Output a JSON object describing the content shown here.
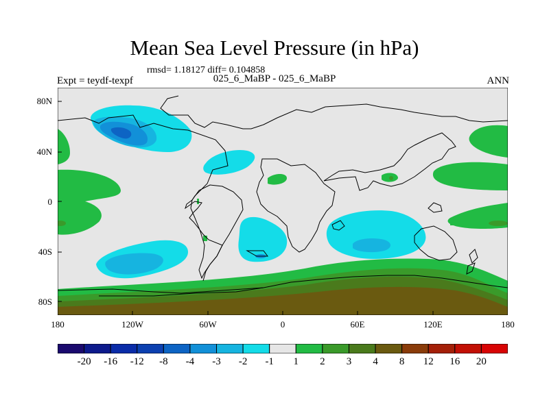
{
  "title": "Mean Sea Level Pressure (in hPa)",
  "stats_line": "rmsd= 1.18127 diff= 0.104858",
  "expt_label": "Expt = teydf-texpf",
  "subtitle": "025_6_MaBP - 025_6_MaBP",
  "season": "ANN",
  "lat_ticks": [
    "80N",
    "40N",
    "0",
    "40S",
    "80S"
  ],
  "lon_ticks": [
    "180",
    "120W",
    "60W",
    "0",
    "60E",
    "120E",
    "180"
  ],
  "colorbar": {
    "labels": [
      "-20",
      "-16",
      "-12",
      "-8",
      "-4",
      "-3",
      "-2",
      "-1",
      "1",
      "2",
      "3",
      "4",
      "8",
      "12",
      "16",
      "20"
    ],
    "colors": [
      "#1a0a6e",
      "#0d1a8c",
      "#0a2ca8",
      "#0c40b0",
      "#0d64c4",
      "#1290d8",
      "#16b4e0",
      "#14dce8",
      "#e6e6e6",
      "#22bb44",
      "#3a9a2a",
      "#4a7a1c",
      "#6a5a10",
      "#8a3c0a",
      "#a42008",
      "#c21005",
      "#d80404"
    ]
  }
}
